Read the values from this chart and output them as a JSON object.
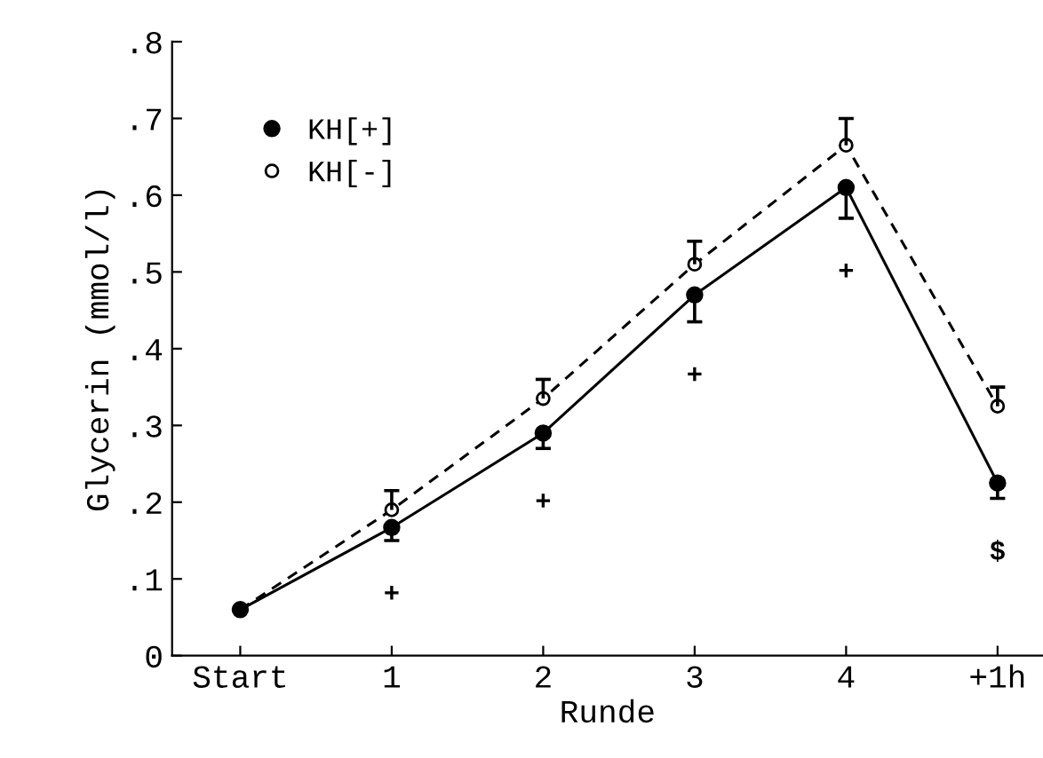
{
  "chart_data": {
    "type": "line",
    "xlabel": "Runde",
    "ylabel": "Glycerin (mmol/l)",
    "categories": [
      "Start",
      "1",
      "2",
      "3",
      "4",
      "+1h"
    ],
    "series": [
      {
        "name": "KH[+]",
        "color": "#000000",
        "line_style": "solid",
        "marker": "circle",
        "values": [
          0.06,
          0.167,
          0.29,
          0.47,
          0.61,
          0.225
        ],
        "errors": [
          null,
          [
            0.15,
            0.167
          ],
          [
            0.27,
            0.29
          ],
          [
            0.435,
            0.47
          ],
          [
            0.57,
            0.61
          ],
          [
            0.205,
            0.225
          ]
        ]
      },
      {
        "name": "KH[-]",
        "color": "#000000",
        "line_style": "dashed",
        "marker": "circle",
        "values": [
          0.06,
          0.19,
          0.335,
          0.51,
          0.665,
          0.325
        ],
        "errors": [
          null,
          [
            0.19,
            0.215
          ],
          [
            0.335,
            0.36
          ],
          [
            0.51,
            0.54
          ],
          [
            0.665,
            0.7
          ],
          [
            0.325,
            0.35
          ]
        ]
      }
    ],
    "ylim": [
      0,
      0.8
    ],
    "yticks": [
      {
        "value": 0,
        "label": "0"
      },
      {
        "value": 0.1,
        "label": ".1"
      },
      {
        "value": 0.2,
        "label": ".2"
      },
      {
        "value": 0.3,
        "label": ".3"
      },
      {
        "value": 0.4,
        "label": ".4"
      },
      {
        "value": 0.5,
        "label": ".5"
      },
      {
        "value": 0.6,
        "label": ".6"
      },
      {
        "value": 0.7,
        "label": ".7"
      },
      {
        "value": 0.8,
        "label": ".8"
      }
    ],
    "annotations": [
      "+",
      "+",
      "+",
      "+",
      "$"
    ],
    "legend": "top left",
    "grid": false
  }
}
